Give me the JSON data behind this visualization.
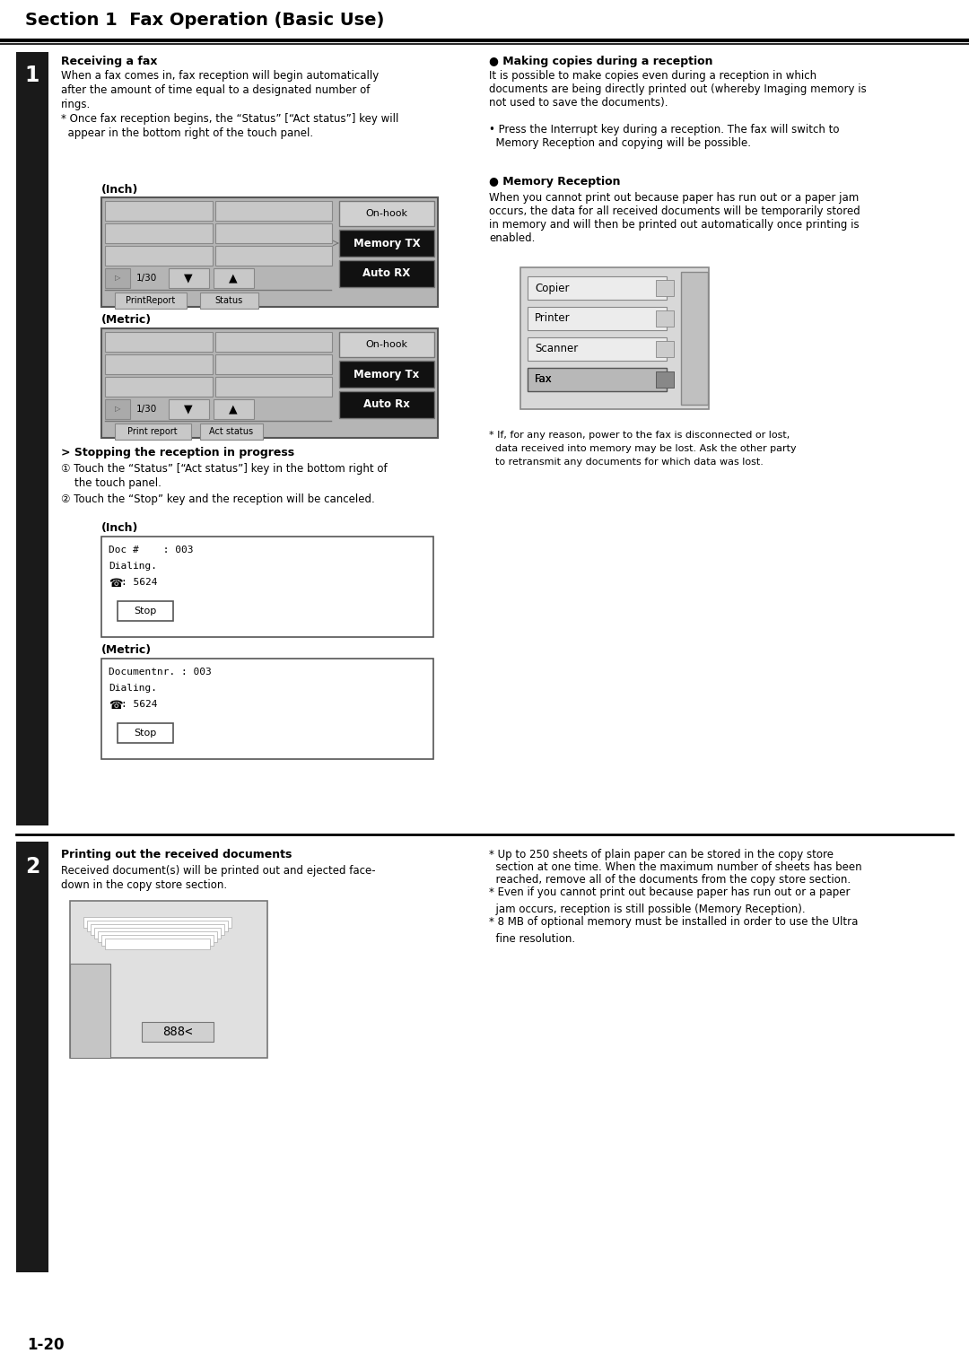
{
  "title": "Section 1  Fax Operation (Basic Use)",
  "bg_color": "#ffffff",
  "dark_color": "#1a1a1a",
  "page_number": "1-20",
  "s1_heading": "Receiving a fax",
  "s1_body_line1": "When a fax comes in, fax reception will begin automatically",
  "s1_body_line2": "after the amount of time equal to a designated number of",
  "s1_body_line3": "rings.",
  "s1_body_line4": "* Once fax reception begins, the “Status” [“Act status”] key will",
  "s1_body_line5": "  appear in the bottom right of the touch panel.",
  "inch_label": "(Inch)",
  "metric_label": "(Metric)",
  "panel_btn_onhook": "On-hook",
  "panel_btn_memtx_inch": "Memory TX",
  "panel_btn_autorx_inch": "Auto RX",
  "panel_btn_memtx_metric": "Memory Tx",
  "panel_btn_autorx_metric": "Auto Rx",
  "panel_130": "1/30",
  "panel_tab_printreport": "PrintReport",
  "panel_tab_status": "Status",
  "panel_tab_printreport_m": "Print report",
  "panel_tab_actstatus_m": "Act status",
  "stopping_heading": "> Stopping the reception in progress",
  "stop_step1": "① Touch the “Status” [“Act status”] key in the bottom right of",
  "stop_step1b": "    the touch panel.",
  "stop_step2": "② Touch the “Stop” key and the reception will be canceled.",
  "dialog_inch_line1": "Doc #    : 003",
  "dialog_inch_line2": "Dialing.",
  "dialog_inch_line3": ": 5624",
  "dialog_stop": "Stop",
  "dialog_metric_line1": "Documentnr. : 003",
  "dialog_metric_line2": "Dialing.",
  "dialog_metric_line3": ": 5624",
  "rc_making_heading": "● Making copies during a reception",
  "rc_making_body1": "It is possible to make copies even during a reception in which",
  "rc_making_body2": "documents are being directly printed out (whereby Imaging memory is",
  "rc_making_body3": "not used to save the documents).",
  "rc_making_body4": "• Press the Interrupt key during a reception. The fax will switch to",
  "rc_making_body5": "  Memory Reception and copying will be possible.",
  "rc_mem_heading": "● Memory Reception",
  "rc_mem_body1": "When you cannot print out because paper has run out or a paper jam",
  "rc_mem_body2": "occurs, the data for all received documents will be temporarily stored",
  "rc_mem_body3": "in memory and will then be printed out automatically once printing is",
  "rc_mem_body4": "enabled.",
  "rc_dev_btns": [
    "Copier",
    "Printer",
    "Scanner",
    "Fax"
  ],
  "rc_note1": "* If, for any reason, power to the fax is disconnected or lost,",
  "rc_note2": "  data received into memory may be lost. Ask the other party",
  "rc_note3": "  to retransmit any documents for which data was lost.",
  "s2_heading": "Printing out the received documents",
  "s2_body1": "Received document(s) will be printed out and ejected face-",
  "s2_body2": "down in the copy store section.",
  "s2_notes": [
    "* Up to 250 sheets of plain paper can be stored in the copy store",
    "  section at one time. When the maximum number of sheets has been",
    "  reached, remove all of the documents from the copy store section.",
    "* Even if you cannot print out because paper has run out or a paper",
    "  jam occurs, reception is still possible (Memory Reception).",
    "* 8 MB of optional memory must be installed in order to use the Ultra",
    "  fine resolution."
  ]
}
